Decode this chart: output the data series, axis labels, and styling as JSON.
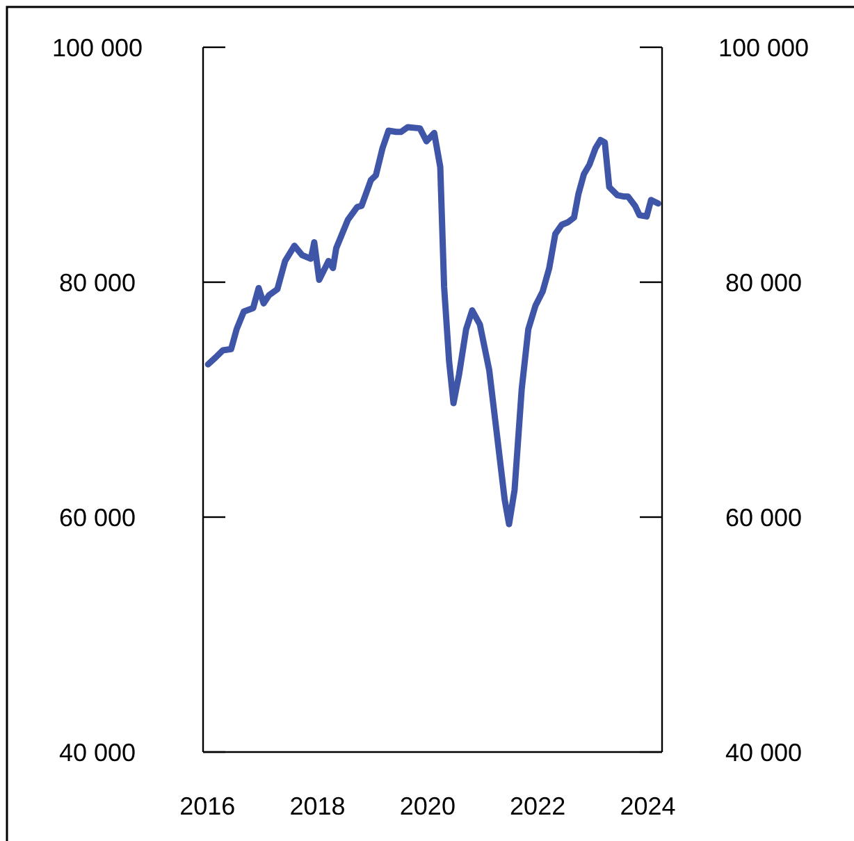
{
  "chart_data": {
    "type": "line",
    "x": [
      2016.01,
      2016.15,
      2016.28,
      2016.43,
      2016.53,
      2016.66,
      2016.83,
      2016.93,
      2017.02,
      2017.12,
      2017.27,
      2017.41,
      2017.58,
      2017.72,
      2017.88,
      2017.94,
      2018.03,
      2018.2,
      2018.28,
      2018.34,
      2018.55,
      2018.72,
      2018.8,
      2018.97,
      2019.06,
      2019.18,
      2019.29,
      2019.43,
      2019.52,
      2019.64,
      2019.86,
      2019.98,
      2020.12,
      2020.23,
      2020.3,
      2020.39,
      2020.47,
      2020.57,
      2020.7,
      2020.81,
      2020.95,
      2021.12,
      2021.24,
      2021.4,
      2021.48,
      2021.58,
      2021.71,
      2021.83,
      2021.96,
      2022.09,
      2022.21,
      2022.32,
      2022.44,
      2022.55,
      2022.66,
      2022.74,
      2022.84,
      2022.94,
      2023.05,
      2023.14,
      2023.22,
      2023.3,
      2023.45,
      2023.56,
      2023.64,
      2023.77,
      2023.85,
      2023.98,
      2024.06,
      2024.19
    ],
    "series": [
      {
        "color": "#3f56a8",
        "values": [
          73000,
          73600,
          74200,
          74300,
          76000,
          77500,
          77800,
          79500,
          78200,
          78900,
          79400,
          81800,
          83100,
          82300,
          82000,
          83400,
          80200,
          81800,
          81200,
          82900,
          85300,
          86400,
          86500,
          88700,
          89100,
          91400,
          92900,
          92800,
          92800,
          93200,
          93100,
          92000,
          92700,
          89800,
          79600,
          73300,
          69700,
          72100,
          76000,
          77600,
          76400,
          72500,
          67800,
          61500,
          59400,
          62300,
          70900,
          76000,
          78000,
          79200,
          81200,
          84100,
          84900,
          85100,
          85500,
          87500,
          89200,
          90000,
          91400,
          92100,
          91900,
          88100,
          87400,
          87300,
          87300,
          86500,
          85700,
          85600,
          87000,
          86700
        ]
      }
    ],
    "xlim": [
      2015.92,
      2024.26
    ],
    "xticks": [
      2016,
      2018,
      2020,
      2022,
      2024
    ],
    "ylim": [
      40000,
      100000
    ],
    "yticks": [
      {
        "value": 40000,
        "label": "40 000"
      },
      {
        "value": 60000,
        "label": "60 000"
      },
      {
        "value": 80000,
        "label": "80 000"
      },
      {
        "value": 100000,
        "label": "100 000"
      }
    ],
    "y2lim": [
      40000,
      100000
    ],
    "y2ticks": [
      {
        "value": 40000,
        "label": "40 000"
      },
      {
        "value": 60000,
        "label": "60 000"
      },
      {
        "value": 80000,
        "label": "80 000"
      },
      {
        "value": 100000,
        "label": "100 000"
      }
    ],
    "grid": false,
    "line_style": "solid",
    "marker": "none"
  }
}
